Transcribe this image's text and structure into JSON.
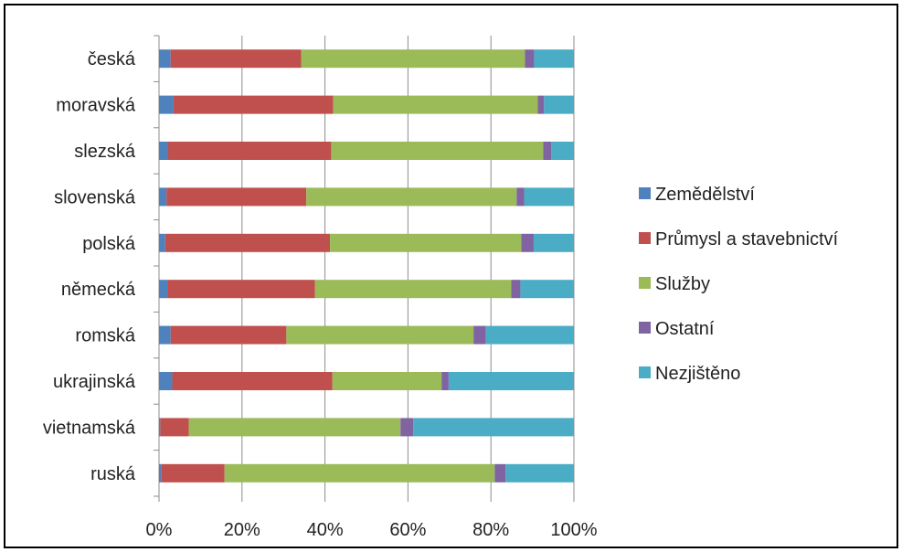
{
  "chart_data": {
    "type": "bar",
    "orientation": "horizontal",
    "stacked": "percent",
    "categories": [
      "česká",
      "moravská",
      "slezská",
      "slovenská",
      "polská",
      "německá",
      "romská",
      "ukrajinská",
      "vietnamská",
      "ruská"
    ],
    "series": [
      {
        "name": "Zemědělství",
        "color": "#4f81bd",
        "values": [
          2.8,
          3.5,
          2.2,
          1.8,
          1.5,
          2.0,
          2.8,
          3.2,
          0.3,
          0.5
        ]
      },
      {
        "name": "Průmysl a stavebnictví",
        "color": "#c0504d",
        "values": [
          31.5,
          38.5,
          39.3,
          33.7,
          39.7,
          35.6,
          27.9,
          38.6,
          6.9,
          15.3
        ]
      },
      {
        "name": "Služby",
        "color": "#9bbb59",
        "values": [
          53.9,
          49.3,
          51.1,
          50.7,
          46.1,
          47.3,
          45.1,
          26.3,
          51.0,
          65.1
        ]
      },
      {
        "name": "Ostatní",
        "color": "#8064a2",
        "values": [
          2.2,
          1.5,
          1.9,
          1.8,
          3.0,
          2.2,
          3.0,
          1.7,
          3.1,
          2.6
        ]
      },
      {
        "name": "Nezjištěno",
        "color": "#4bacc6",
        "values": [
          9.6,
          7.2,
          5.5,
          12.0,
          9.7,
          12.9,
          21.2,
          30.2,
          38.7,
          16.5
        ]
      }
    ],
    "xlim": [
      0,
      100
    ],
    "xticks": [
      "0%",
      "20%",
      "40%",
      "60%",
      "80%",
      "100%"
    ],
    "grid": true,
    "legend_position": "right"
  }
}
